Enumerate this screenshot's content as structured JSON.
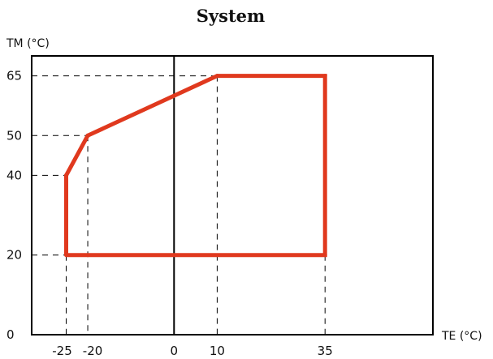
{
  "title": "System",
  "chart_data": {
    "type": "line",
    "title": "System",
    "xlabel": "TE (°C)",
    "ylabel": "TM (°C)",
    "xlim": [
      -33,
      60
    ],
    "ylim": [
      0,
      70
    ],
    "x_ticks": [
      -25,
      -20,
      0,
      10,
      35
    ],
    "x_tick_labels": [
      "-25",
      "-20",
      "0",
      "10",
      "35"
    ],
    "y_ticks": [
      0,
      20,
      40,
      50,
      65
    ],
    "y_tick_labels": [
      "0",
      "20",
      "40",
      "50",
      "65"
    ],
    "grid": false,
    "reference_line_x": 0,
    "series": [
      {
        "color": "#e0391e",
        "points": [
          {
            "x": -25,
            "y": 20
          },
          {
            "x": -25,
            "y": 40
          },
          {
            "x": -20,
            "y": 50
          },
          {
            "x": 10,
            "y": 65
          },
          {
            "x": 35,
            "y": 65
          },
          {
            "x": 35,
            "y": 20
          },
          {
            "x": -25,
            "y": 20
          }
        ]
      }
    ]
  }
}
